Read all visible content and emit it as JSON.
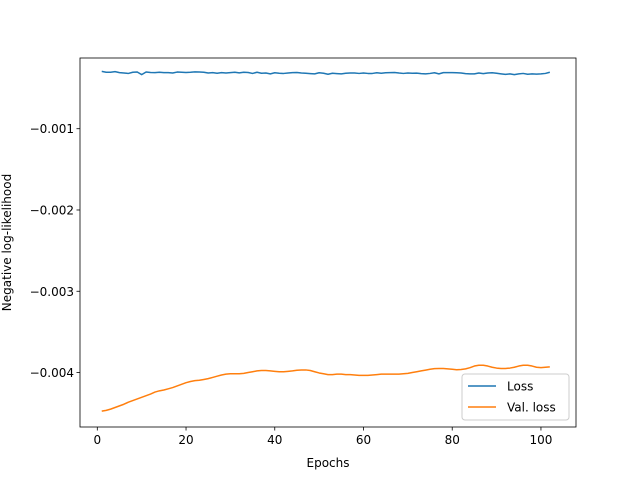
{
  "chart_data": {
    "type": "line",
    "title": "",
    "xlabel": "Epochs",
    "ylabel": "Negative log-likelihood",
    "xlim": [
      -3.9,
      107.9
    ],
    "ylim": [
      -0.00467,
      -0.00013
    ],
    "xticks": [
      0,
      20,
      40,
      60,
      80,
      100
    ],
    "xtick_labels": [
      "0",
      "20",
      "40",
      "60",
      "80",
      "100"
    ],
    "yticks": [
      -0.001,
      -0.002,
      -0.003,
      -0.004
    ],
    "ytick_labels": [
      "−0.001",
      "−0.002",
      "−0.003",
      "−0.004"
    ],
    "grid": false,
    "legend_position": "lower-right",
    "x": [
      1,
      2,
      3,
      4,
      5,
      6,
      7,
      8,
      9,
      10,
      11,
      12,
      13,
      14,
      15,
      16,
      17,
      18,
      19,
      20,
      21,
      22,
      23,
      24,
      25,
      26,
      27,
      28,
      29,
      30,
      31,
      32,
      33,
      34,
      35,
      36,
      37,
      38,
      39,
      40,
      41,
      42,
      43,
      44,
      45,
      46,
      47,
      48,
      49,
      50,
      51,
      52,
      53,
      54,
      55,
      56,
      57,
      58,
      59,
      60,
      61,
      62,
      63,
      64,
      65,
      66,
      67,
      68,
      69,
      70,
      71,
      72,
      73,
      74,
      75,
      76,
      77,
      78,
      79,
      80,
      81,
      82,
      83,
      84,
      85,
      86,
      87,
      88,
      89,
      90,
      91,
      92,
      93,
      94,
      95,
      96,
      97,
      98,
      99,
      100,
      101,
      102
    ],
    "series": [
      {
        "name": "Loss",
        "color": "#1f77b4",
        "values": [
          -0.000295,
          -0.000305,
          -0.000305,
          -0.000298,
          -0.00031,
          -0.000315,
          -0.00032,
          -0.000305,
          -0.000302,
          -0.000335,
          -0.000302,
          -0.000308,
          -0.00031,
          -0.000305,
          -0.00031,
          -0.00031,
          -0.000315,
          -0.000303,
          -0.000305,
          -0.000308,
          -0.000305,
          -0.0003,
          -0.000302,
          -0.000305,
          -0.000315,
          -0.00031,
          -0.000318,
          -0.00031,
          -0.000315,
          -0.00031,
          -0.000305,
          -0.000313,
          -0.000305,
          -0.000308,
          -0.00032,
          -0.000305,
          -0.000318,
          -0.000315,
          -0.000325,
          -0.000312,
          -0.000318,
          -0.00032,
          -0.000315,
          -0.00031,
          -0.000308,
          -0.000315,
          -0.000318,
          -0.000322,
          -0.000325,
          -0.000312,
          -0.000318,
          -0.00033,
          -0.000318,
          -0.000322,
          -0.000325,
          -0.000318,
          -0.000315,
          -0.000315,
          -0.00032,
          -0.000315,
          -0.00032,
          -0.00032,
          -0.000312,
          -0.000318,
          -0.000312,
          -0.00031,
          -0.000308,
          -0.000315,
          -0.00032,
          -0.000315,
          -0.000318,
          -0.000316,
          -0.000322,
          -0.000325,
          -0.00032,
          -0.000312,
          -0.000325,
          -0.00031,
          -0.00031,
          -0.00031,
          -0.000312,
          -0.000315,
          -0.000322,
          -0.000325,
          -0.000325,
          -0.000315,
          -0.000322,
          -0.000315,
          -0.000312,
          -0.000318,
          -0.000325,
          -0.000332,
          -0.000325,
          -0.000335,
          -0.000325,
          -0.00032,
          -0.00033,
          -0.000325,
          -0.000328,
          -0.000325,
          -0.00032,
          -0.000305
        ]
      },
      {
        "name": "Val. loss",
        "color": "#ff7f0e",
        "values": [
          -0.004475,
          -0.004465,
          -0.00445,
          -0.00443,
          -0.00441,
          -0.00439,
          -0.004365,
          -0.004345,
          -0.004325,
          -0.004305,
          -0.004285,
          -0.004265,
          -0.00424,
          -0.004225,
          -0.004215,
          -0.0042,
          -0.004185,
          -0.004165,
          -0.004145,
          -0.004125,
          -0.00411,
          -0.0041,
          -0.004095,
          -0.004085,
          -0.004075,
          -0.00406,
          -0.004045,
          -0.00403,
          -0.00402,
          -0.004015,
          -0.004015,
          -0.004015,
          -0.00401,
          -0.004,
          -0.00399,
          -0.00398,
          -0.003975,
          -0.003975,
          -0.00398,
          -0.003985,
          -0.00399,
          -0.00399,
          -0.003985,
          -0.00398,
          -0.003972,
          -0.003968,
          -0.003968,
          -0.003975,
          -0.00399,
          -0.004005,
          -0.004015,
          -0.004025,
          -0.004025,
          -0.00402,
          -0.00402,
          -0.004025,
          -0.004025,
          -0.00403,
          -0.004035,
          -0.004035,
          -0.004035,
          -0.00403,
          -0.004025,
          -0.00402,
          -0.00402,
          -0.00402,
          -0.00402,
          -0.00402,
          -0.004015,
          -0.00401,
          -0.004,
          -0.00399,
          -0.00398,
          -0.00397,
          -0.00396,
          -0.003952,
          -0.00395,
          -0.00395,
          -0.003955,
          -0.00396,
          -0.003965,
          -0.003962,
          -0.003955,
          -0.00394,
          -0.00392,
          -0.00391,
          -0.00391,
          -0.00392,
          -0.003935,
          -0.003945,
          -0.00395,
          -0.00395,
          -0.003945,
          -0.003935,
          -0.00392,
          -0.00391,
          -0.00391,
          -0.00392,
          -0.003935,
          -0.00394,
          -0.003935,
          -0.00393
        ]
      }
    ]
  }
}
